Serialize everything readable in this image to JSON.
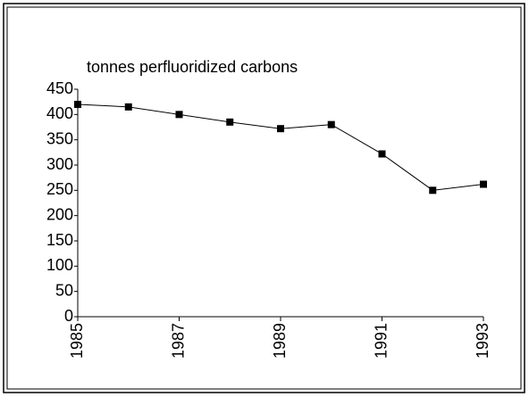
{
  "chart_data": {
    "type": "line",
    "ylabel": "tonnes perfluoridized carbons",
    "x": [
      1985,
      1986,
      1987,
      1988,
      1989,
      1990,
      1991,
      1992,
      1993
    ],
    "series": [
      {
        "color": "#000000",
        "values": [
          420,
          415,
          400,
          385,
          372,
          380,
          322,
          250,
          262
        ]
      }
    ],
    "xlim": [
      1985,
      1993
    ],
    "xticks": [
      1985,
      1987,
      1989,
      1991,
      1993
    ],
    "ylim": [
      0,
      450
    ],
    "yticks": [
      0,
      50,
      100,
      150,
      200,
      250,
      300,
      350,
      400,
      450
    ],
    "grid": false,
    "marker": "square"
  }
}
